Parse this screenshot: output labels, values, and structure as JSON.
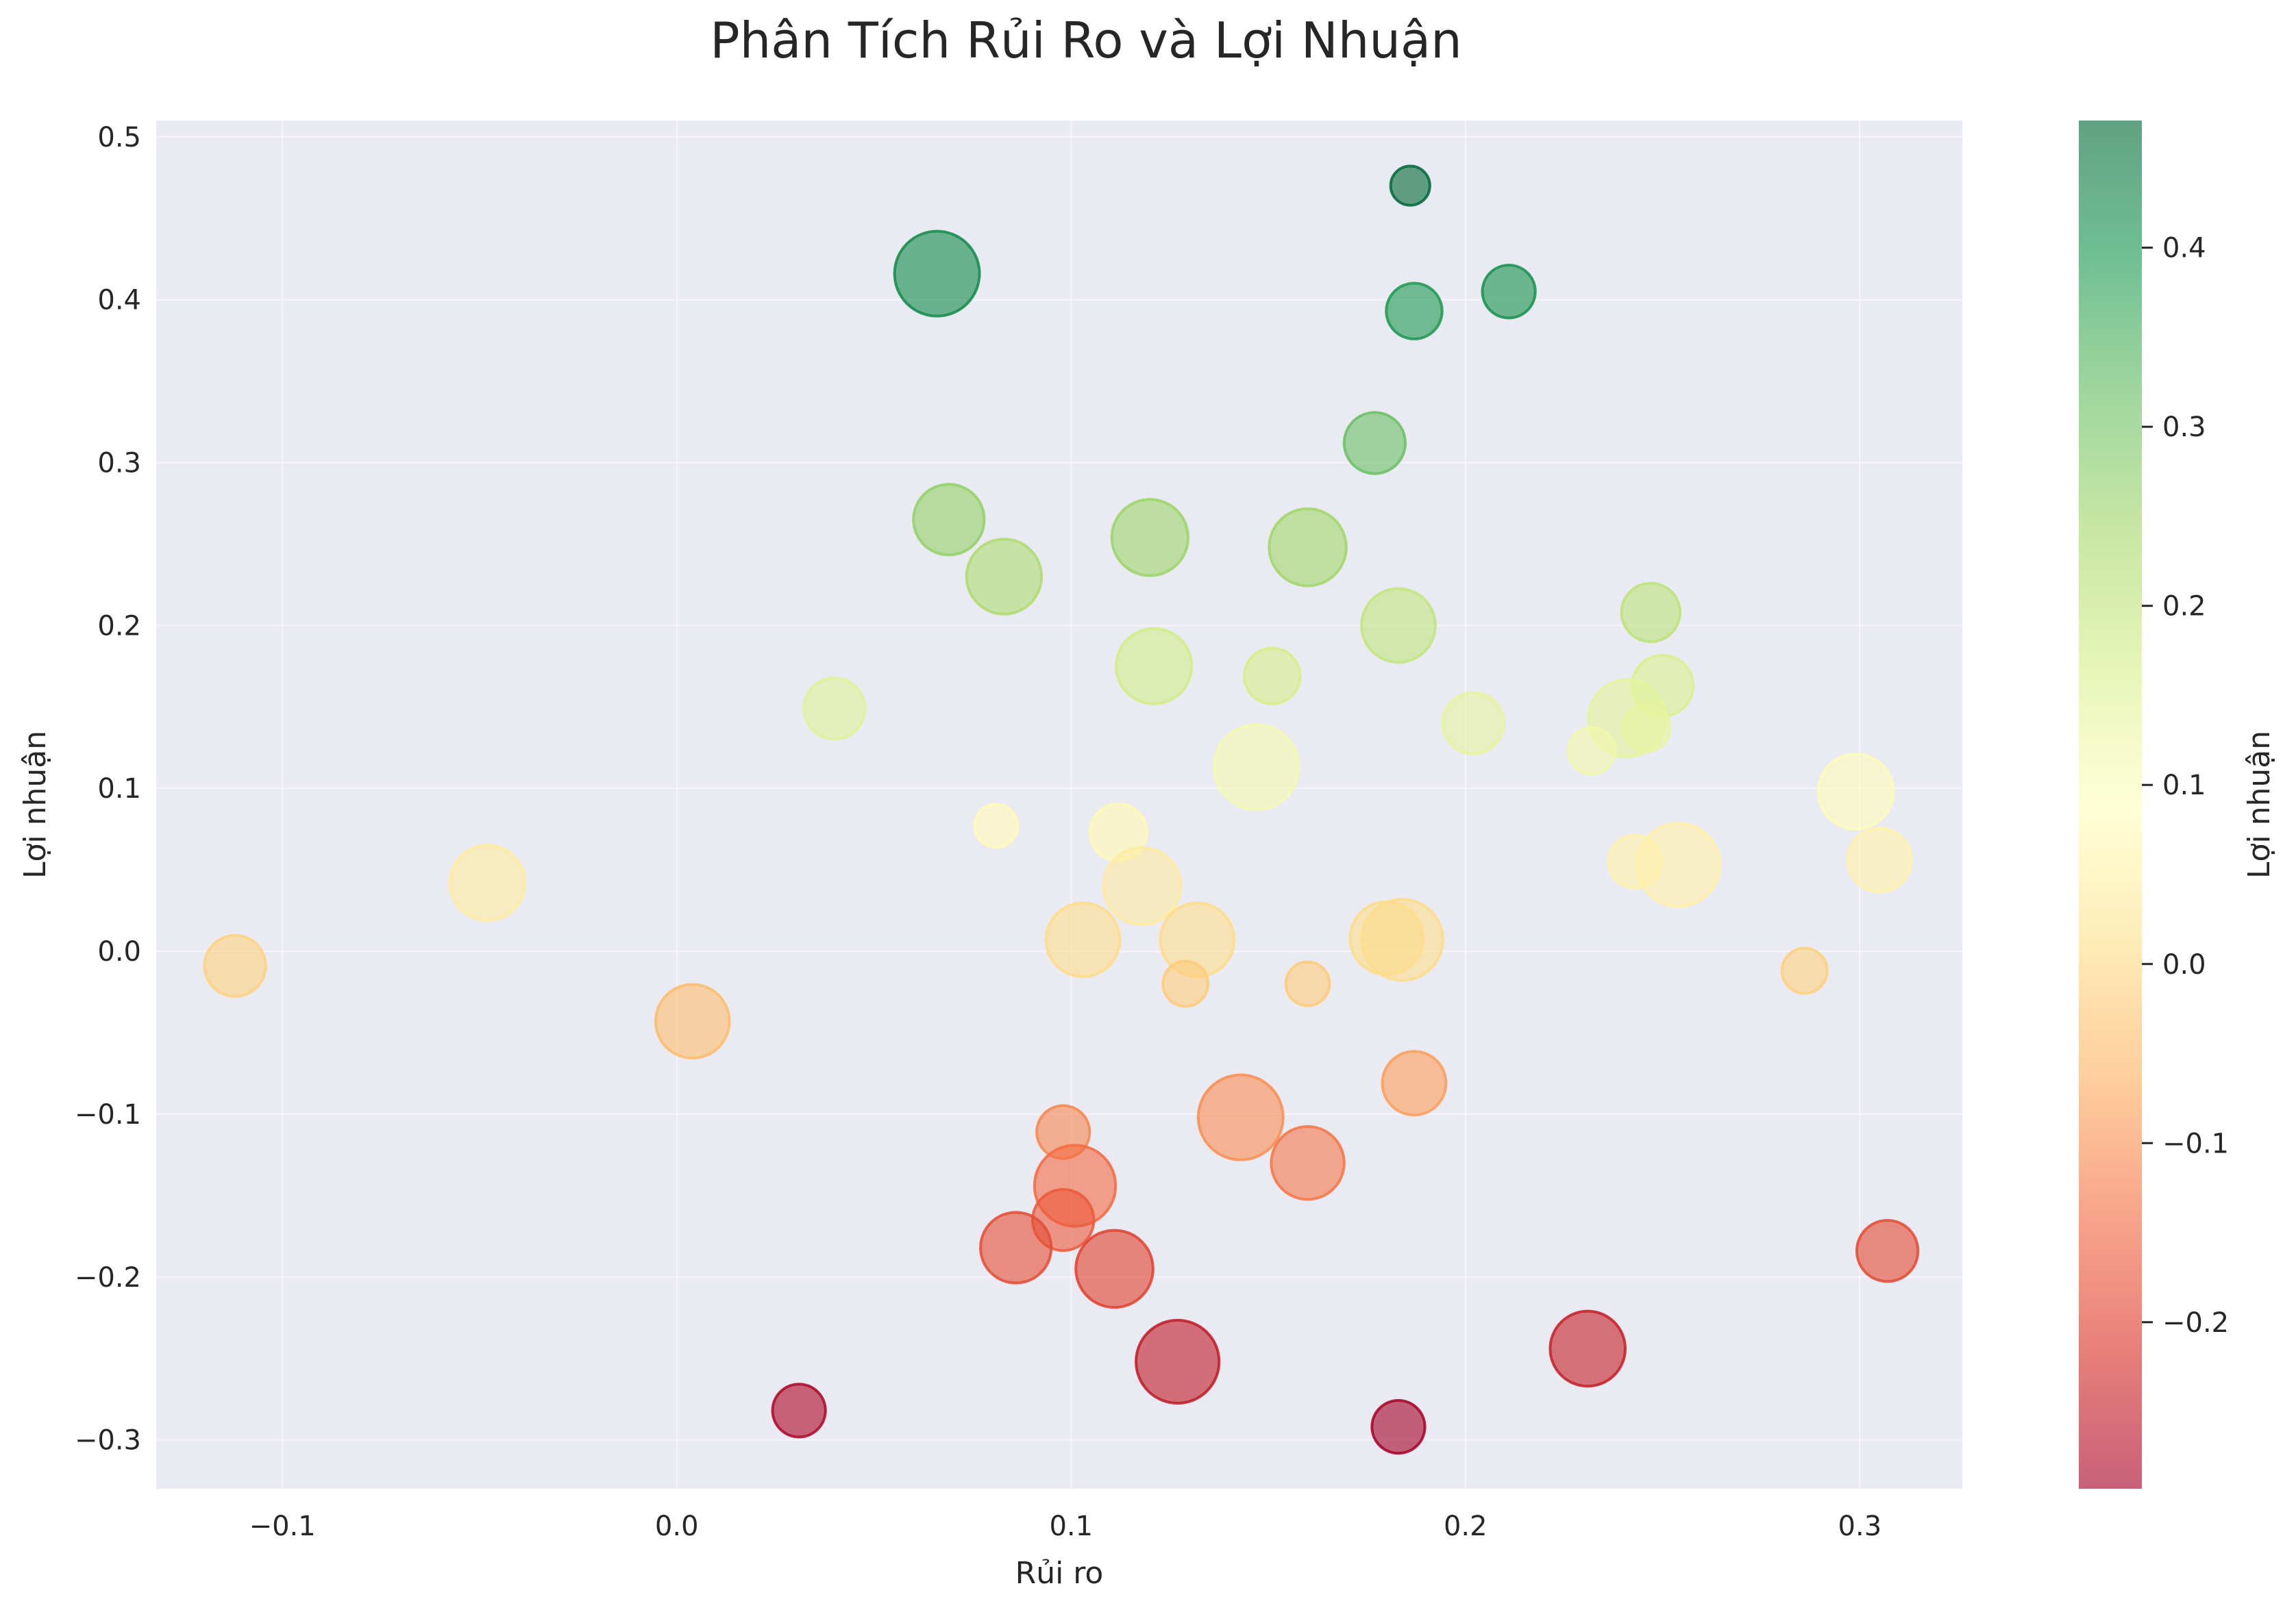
{
  "chart_data": {
    "type": "scatter",
    "title": "Phân Tích Rủi Ro và Lợi Nhuận",
    "xlabel": "Rủi ro",
    "ylabel": "Lợi nhuận",
    "xlim": [
      -0.132,
      0.326
    ],
    "ylim": [
      -0.33,
      0.51
    ],
    "xticks": [
      -0.1,
      0.0,
      0.1,
      0.2,
      0.3
    ],
    "xtick_labels": [
      "−0.1",
      "0.0",
      "0.1",
      "0.2",
      "0.3"
    ],
    "yticks": [
      -0.3,
      -0.2,
      -0.1,
      0.0,
      0.1,
      0.2,
      0.3,
      0.4,
      0.5
    ],
    "ytick_labels": [
      "−0.3",
      "−0.2",
      "−0.1",
      "0.0",
      "0.1",
      "0.2",
      "0.3",
      "0.4",
      "0.5"
    ],
    "grid": true,
    "colorbar": {
      "label": "Lợi nhuận",
      "colormap": "RdYlGn",
      "range": [
        -0.293,
        0.471
      ],
      "ticks": [
        -0.2,
        -0.1,
        0.0,
        0.1,
        0.2,
        0.3,
        0.4
      ],
      "tick_labels": [
        "−0.2",
        "−0.1",
        "0.0",
        "0.1",
        "0.2",
        "0.3",
        "0.4"
      ]
    },
    "points": [
      {
        "x": 0.186,
        "y": 0.47,
        "size": 0.1
      },
      {
        "x": 0.066,
        "y": 0.416,
        "size": 1.0
      },
      {
        "x": 0.211,
        "y": 0.405,
        "size": 0.3
      },
      {
        "x": 0.187,
        "y": 0.393,
        "size": 0.35
      },
      {
        "x": 0.177,
        "y": 0.312,
        "size": 0.45
      },
      {
        "x": 0.069,
        "y": 0.265,
        "size": 0.65
      },
      {
        "x": 0.12,
        "y": 0.254,
        "size": 0.78
      },
      {
        "x": 0.16,
        "y": 0.248,
        "size": 0.8
      },
      {
        "x": 0.083,
        "y": 0.23,
        "size": 0.75
      },
      {
        "x": 0.247,
        "y": 0.208,
        "size": 0.4
      },
      {
        "x": 0.183,
        "y": 0.2,
        "size": 0.72
      },
      {
        "x": 0.121,
        "y": 0.175,
        "size": 0.76
      },
      {
        "x": 0.151,
        "y": 0.169,
        "size": 0.35
      },
      {
        "x": 0.25,
        "y": 0.163,
        "size": 0.45
      },
      {
        "x": 0.04,
        "y": 0.149,
        "size": 0.45
      },
      {
        "x": 0.241,
        "y": 0.143,
        "size": 0.8
      },
      {
        "x": 0.202,
        "y": 0.14,
        "size": 0.45
      },
      {
        "x": 0.246,
        "y": 0.137,
        "size": 0.2
      },
      {
        "x": 0.232,
        "y": 0.123,
        "size": 0.2
      },
      {
        "x": 0.147,
        "y": 0.113,
        "size": 1.0
      },
      {
        "x": 0.299,
        "y": 0.098,
        "size": 0.75
      },
      {
        "x": 0.081,
        "y": 0.077,
        "size": 0.15
      },
      {
        "x": 0.112,
        "y": 0.073,
        "size": 0.37
      },
      {
        "x": 0.254,
        "y": 0.053,
        "size": 0.95
      },
      {
        "x": 0.243,
        "y": 0.055,
        "size": 0.3
      },
      {
        "x": 0.305,
        "y": 0.056,
        "size": 0.5
      },
      {
        "x": -0.048,
        "y": 0.042,
        "size": 0.75
      },
      {
        "x": 0.118,
        "y": 0.04,
        "size": 0.8
      },
      {
        "x": 0.184,
        "y": 0.007,
        "size": 0.9
      },
      {
        "x": 0.18,
        "y": 0.008,
        "size": 0.7
      },
      {
        "x": 0.103,
        "y": 0.007,
        "size": 0.72
      },
      {
        "x": 0.132,
        "y": 0.007,
        "size": 0.72
      },
      {
        "x": -0.112,
        "y": -0.009,
        "size": 0.45
      },
      {
        "x": 0.286,
        "y": -0.012,
        "size": 0.18
      },
      {
        "x": 0.129,
        "y": -0.02,
        "size": 0.18
      },
      {
        "x": 0.16,
        "y": -0.02,
        "size": 0.16
      },
      {
        "x": 0.004,
        "y": -0.043,
        "size": 0.72
      },
      {
        "x": 0.187,
        "y": -0.081,
        "size": 0.5
      },
      {
        "x": 0.143,
        "y": -0.102,
        "size": 1.0
      },
      {
        "x": 0.098,
        "y": -0.111,
        "size": 0.3
      },
      {
        "x": 0.16,
        "y": -0.13,
        "size": 0.7
      },
      {
        "x": 0.101,
        "y": -0.144,
        "size": 0.9
      },
      {
        "x": 0.098,
        "y": -0.165,
        "size": 0.45
      },
      {
        "x": 0.086,
        "y": -0.182,
        "size": 0.65
      },
      {
        "x": 0.111,
        "y": -0.195,
        "size": 0.8
      },
      {
        "x": 0.307,
        "y": -0.184,
        "size": 0.45
      },
      {
        "x": 0.231,
        "y": -0.244,
        "size": 0.75
      },
      {
        "x": 0.127,
        "y": -0.252,
        "size": 0.95
      },
      {
        "x": 0.031,
        "y": -0.282,
        "size": 0.3
      },
      {
        "x": 0.183,
        "y": -0.292,
        "size": 0.3
      }
    ]
  }
}
